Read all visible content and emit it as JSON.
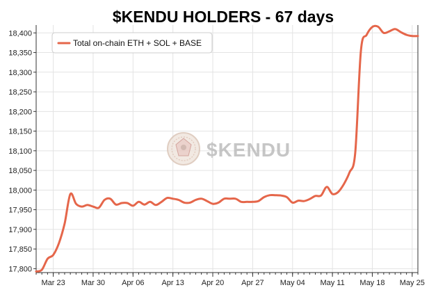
{
  "chart_data": {
    "type": "line",
    "title": "$KENDU HOLDERS - 67 days",
    "xlabel": "",
    "ylabel": "",
    "ylim": [
      17790,
      18420
    ],
    "xlim": [
      "2025-03-20",
      "2025-05-26"
    ],
    "grid": true,
    "legend_position": "top-left",
    "color": "#e5664a",
    "x_ticks": [
      "Mar 23",
      "Mar 30",
      "Apr 06",
      "Apr 13",
      "Apr 20",
      "Apr 27",
      "May 04",
      "May 11",
      "May 18",
      "May 25"
    ],
    "x_tick_dates": [
      "2025-03-23",
      "2025-03-30",
      "2025-04-06",
      "2025-04-13",
      "2025-04-20",
      "2025-04-27",
      "2025-05-04",
      "2025-05-11",
      "2025-05-18",
      "2025-05-25"
    ],
    "y_ticks": [
      "17,800",
      "17,850",
      "17,900",
      "17,950",
      "18,000",
      "18,050",
      "18,100",
      "18,150",
      "18,200",
      "18,250",
      "18,300",
      "18,350",
      "18,400"
    ],
    "y_tick_values": [
      17800,
      17850,
      17900,
      17950,
      18000,
      18050,
      18100,
      18150,
      18200,
      18250,
      18300,
      18350,
      18400
    ],
    "series": [
      {
        "name": "Total on-chain ETH + SOL + BASE",
        "x": [
          "2025-03-20",
          "2025-03-21",
          "2025-03-22",
          "2025-03-23",
          "2025-03-24",
          "2025-03-25",
          "2025-03-26",
          "2025-03-27",
          "2025-03-28",
          "2025-03-29",
          "2025-03-30",
          "2025-03-31",
          "2025-04-01",
          "2025-04-02",
          "2025-04-03",
          "2025-04-04",
          "2025-04-05",
          "2025-04-06",
          "2025-04-07",
          "2025-04-08",
          "2025-04-09",
          "2025-04-10",
          "2025-04-11",
          "2025-04-12",
          "2025-04-13",
          "2025-04-14",
          "2025-04-15",
          "2025-04-16",
          "2025-04-17",
          "2025-04-18",
          "2025-04-19",
          "2025-04-20",
          "2025-04-21",
          "2025-04-22",
          "2025-04-23",
          "2025-04-24",
          "2025-04-25",
          "2025-04-26",
          "2025-04-27",
          "2025-04-28",
          "2025-04-29",
          "2025-04-30",
          "2025-05-01",
          "2025-05-02",
          "2025-05-03",
          "2025-05-04",
          "2025-05-05",
          "2025-05-06",
          "2025-05-07",
          "2025-05-08",
          "2025-05-09",
          "2025-05-10",
          "2025-05-11",
          "2025-05-12",
          "2025-05-13",
          "2025-05-14",
          "2025-05-15",
          "2025-05-16",
          "2025-05-17",
          "2025-05-18",
          "2025-05-19",
          "2025-05-20",
          "2025-05-21",
          "2025-05-22",
          "2025-05-23",
          "2025-05-24",
          "2025-05-25",
          "2025-05-26"
        ],
        "y": [
          17793,
          17797,
          17825,
          17835,
          17865,
          17915,
          17990,
          17965,
          17958,
          17962,
          17958,
          17955,
          17975,
          17978,
          17963,
          17967,
          17967,
          17960,
          17970,
          17963,
          17970,
          17962,
          17970,
          17980,
          17978,
          17975,
          17968,
          17968,
          17975,
          17978,
          17972,
          17965,
          17968,
          17978,
          17978,
          17978,
          17970,
          17970,
          17970,
          17972,
          17982,
          17987,
          17987,
          17986,
          17982,
          17968,
          17973,
          17972,
          17977,
          17985,
          17986,
          18008,
          17990,
          17995,
          18015,
          18045,
          18095,
          18355,
          18395,
          18415,
          18416,
          18400,
          18404,
          18410,
          18402,
          18395,
          18392,
          18392
        ]
      }
    ]
  },
  "watermark": {
    "text": "$KENDU",
    "seal": "kendu-seal-logo"
  }
}
